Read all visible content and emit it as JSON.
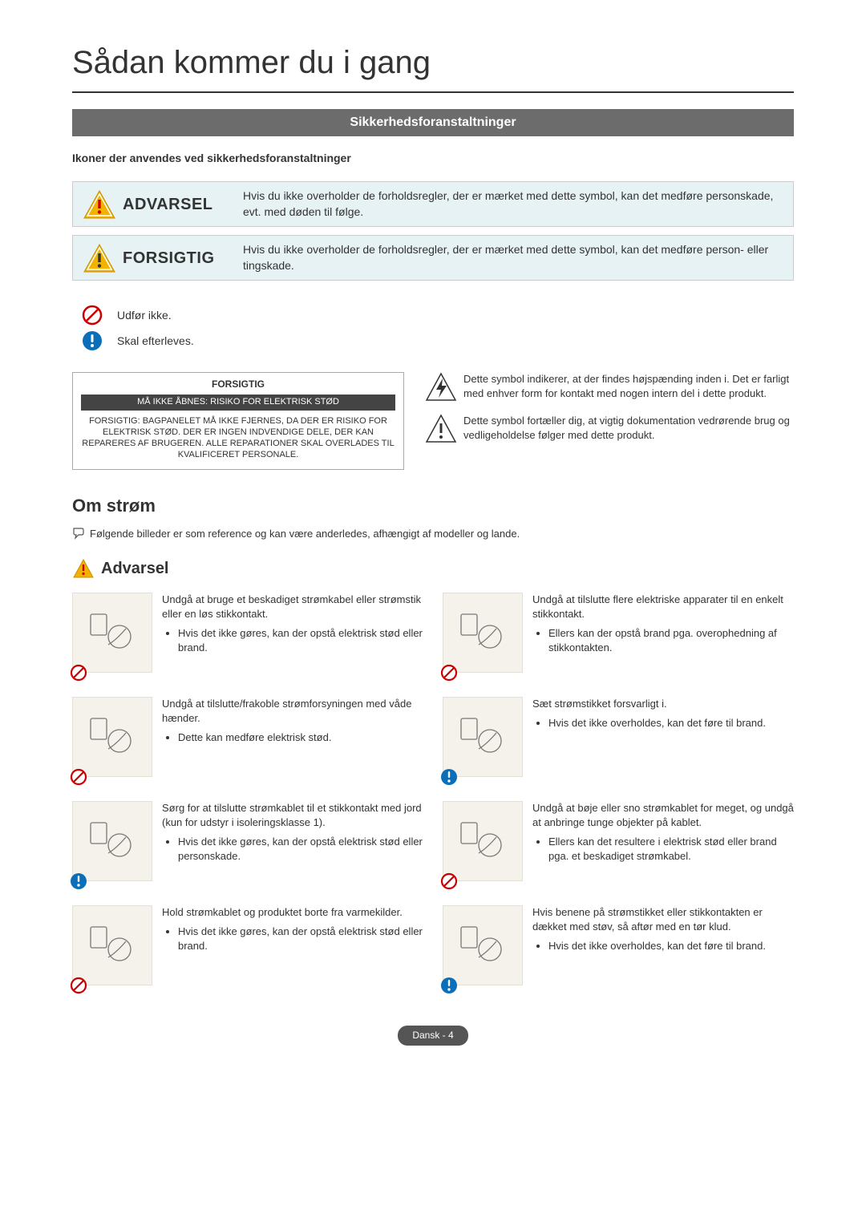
{
  "title": "Sådan kommer du i gang",
  "banner": "Sikkerhedsforanstaltninger",
  "icons_heading": "Ikoner der anvendes ved sikkerhedsforanstaltninger",
  "alerts": {
    "advarsel": {
      "label": "ADVARSEL",
      "text": "Hvis du ikke overholder de forholdsregler, der er mærket med dette symbol, kan det medføre personskade, evt. med døden til følge."
    },
    "forsigtig": {
      "label": "FORSIGTIG",
      "text": "Hvis du ikke overholder de forholdsregler, der er mærket med dette symbol, kan det medføre person- eller tingskade."
    }
  },
  "legend": {
    "prohibit": "Udfør ikke.",
    "must": "Skal efterleves."
  },
  "panel": {
    "title": "FORSIGTIG",
    "bar": "MÅ IKKE ÅBNES: RISIKO FOR ELEKTRISK STØD",
    "body": "FORSIGTIG: BAGPANELET MÅ IKKE FJERNES, DA DER ER RISIKO FOR ELEKTRISK STØD. DER ER INGEN INDVENDIGE DELE, DER KAN REPARERES AF BRUGEREN. ALLE REPARATIONER SKAL OVERLADES TIL KVALIFICERET PERSONALE.",
    "right1": "Dette symbol indikerer, at der findes højspænding inden i. Det er farligt med enhver form for kontakt med nogen intern del i dette produkt.",
    "right2": "Dette symbol fortæller dig, at vigtig dokumentation vedrørende brug og vedligeholdelse følger med dette produkt."
  },
  "om_strom": {
    "heading": "Om strøm",
    "note": "Følgende billeder er som reference og kan være anderledes, afhængigt af modeller og lande.",
    "warn_heading": "Advarsel"
  },
  "warnings": [
    [
      {
        "icon_type": "prohibit",
        "main": "Undgå at bruge et beskadiget strømkabel eller strømstik eller en løs stikkontakt.",
        "bullet": "Hvis det ikke gøres, kan der opstå elektrisk stød eller brand."
      },
      {
        "icon_type": "prohibit",
        "main": "Undgå at tilslutte flere elektriske apparater til en enkelt stikkontakt.",
        "bullet": "Ellers kan der opstå brand pga. overophedning af stikkontakten."
      }
    ],
    [
      {
        "icon_type": "prohibit",
        "main": "Undgå at tilslutte/frakoble strømforsyningen med våde hænder.",
        "bullet": "Dette kan medføre elektrisk stød."
      },
      {
        "icon_type": "must",
        "main": "Sæt strømstikket forsvarligt i.",
        "bullet": "Hvis det ikke overholdes, kan det føre til brand."
      }
    ],
    [
      {
        "icon_type": "must",
        "main": "Sørg for at tilslutte strømkablet til et stikkontakt med jord (kun for udstyr i isoleringsklasse 1).",
        "bullet": "Hvis det ikke gøres, kan der opstå elektrisk stød eller personskade."
      },
      {
        "icon_type": "prohibit",
        "main": "Undgå at bøje eller sno strømkablet for meget, og undgå at anbringe tunge objekter på kablet.",
        "bullet": "Ellers kan det resultere i elektrisk stød eller brand pga. et beskadiget strømkabel."
      }
    ],
    [
      {
        "icon_type": "prohibit",
        "main": "Hold strømkablet og produktet borte fra varmekilder.",
        "bullet": "Hvis det ikke gøres, kan der opstå elektrisk stød eller brand."
      },
      {
        "icon_type": "must",
        "main": "Hvis benene på strømstikket eller stikkontakten er dækket med støv, så aftør med en tør klud.",
        "bullet": "Hvis det ikke overholdes, kan det føre til brand."
      }
    ]
  ],
  "footer": "Dansk - 4"
}
